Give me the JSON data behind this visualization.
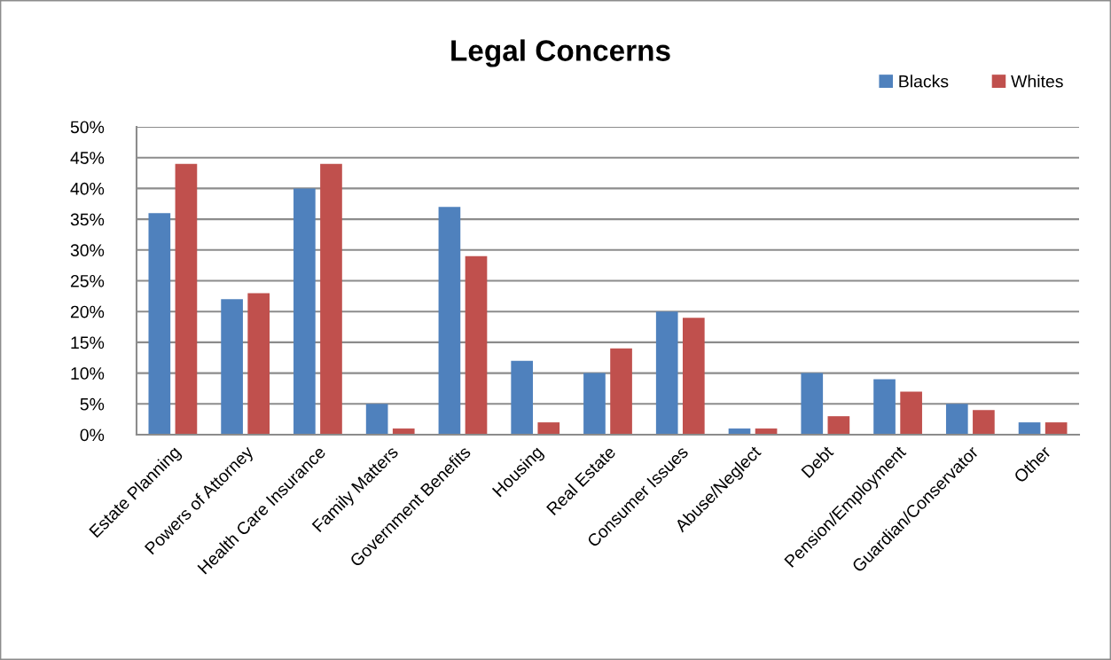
{
  "chart_data": {
    "type": "bar",
    "title": "Legal Concerns",
    "categories": [
      "Estate Planning",
      "Powers of Attorney",
      "Health Care Insurance",
      "Family Matters",
      "Government Benefits",
      "Housing",
      "Real Estate",
      "Consumer Issues",
      "Abuse/Neglect",
      "Debt",
      "Pension/Employment",
      "Guardian/Conservator",
      "Other"
    ],
    "series": [
      {
        "name": "Blacks",
        "color": "#4f81bd",
        "values": [
          36,
          22,
          40,
          5,
          37,
          12,
          10,
          20,
          1,
          10,
          9,
          5,
          2
        ]
      },
      {
        "name": "Whites",
        "color": "#c0504d",
        "values": [
          44,
          23,
          44,
          1,
          29,
          2,
          14,
          19,
          1,
          3,
          7,
          4,
          2
        ]
      }
    ],
    "ylim": [
      0,
      50
    ],
    "yticks": [
      {
        "value": 0,
        "label": "0%"
      },
      {
        "value": 5,
        "label": "5%"
      },
      {
        "value": 10,
        "label": "10%"
      },
      {
        "value": 15,
        "label": "15%"
      },
      {
        "value": 20,
        "label": "20%"
      },
      {
        "value": 25,
        "label": "25%"
      },
      {
        "value": 30,
        "label": "30%"
      },
      {
        "value": 35,
        "label": "35%"
      },
      {
        "value": 40,
        "label": "40%"
      },
      {
        "value": 45,
        "label": "45%"
      },
      {
        "value": 50,
        "label": "50%"
      }
    ],
    "grid": "y",
    "legend": "top right"
  }
}
